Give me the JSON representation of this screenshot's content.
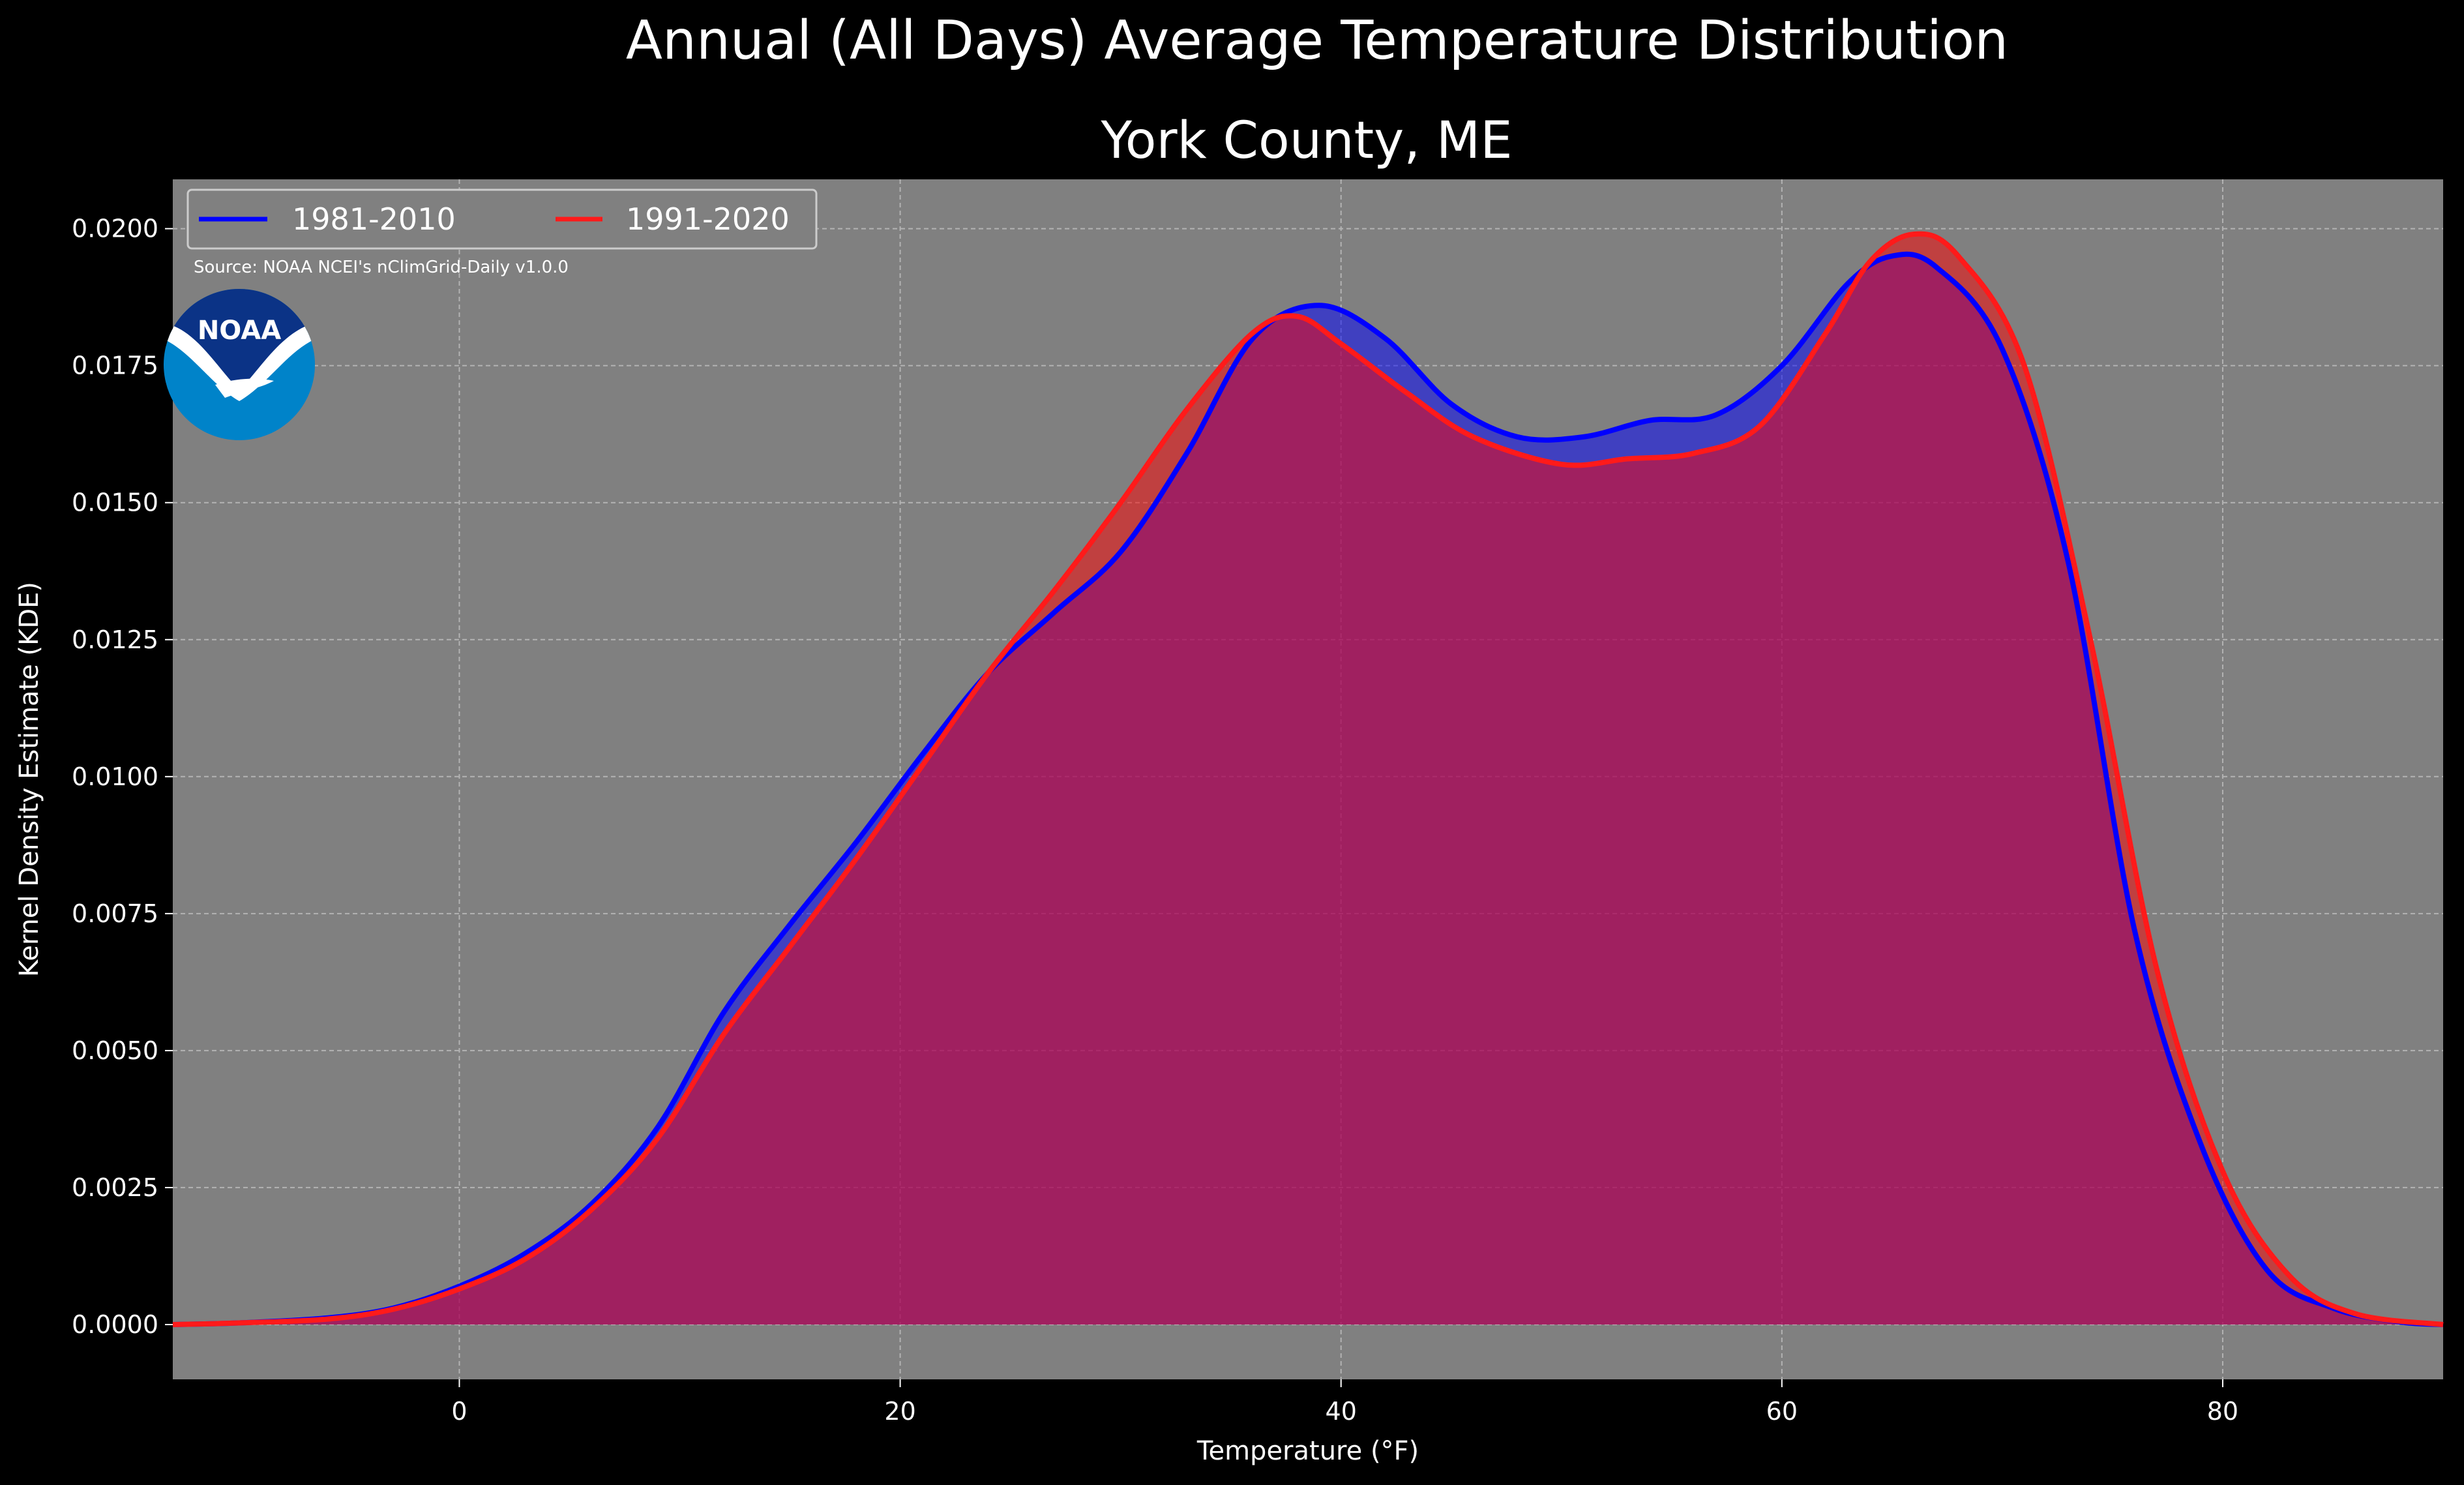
{
  "figure": {
    "suptitle": "Annual (All Days) Average Temperature Distribution",
    "source_note": "Source: NOAA NCEI's nClimGrid-Daily v1.0.0",
    "logo_text": "NOAA",
    "background": "#000000",
    "plot_background": "#808080"
  },
  "chart_data": {
    "type": "area",
    "title": "York County, ME",
    "xlabel": "Temperature (°F)",
    "ylabel": "Kernel Density Estimate (KDE)",
    "xlim": [
      -13,
      90
    ],
    "ylim": [
      -0.001,
      0.0209
    ],
    "xticks": [
      0,
      20,
      40,
      60,
      80
    ],
    "yticks": [
      0.0,
      0.0025,
      0.005,
      0.0075,
      0.01,
      0.0125,
      0.015,
      0.0175,
      0.02
    ],
    "xtick_labels": [
      "0",
      "20",
      "40",
      "60",
      "80"
    ],
    "ytick_labels": [
      "0.0000",
      "0.0025",
      "0.0050",
      "0.0075",
      "0.0100",
      "0.0125",
      "0.0150",
      "0.0175",
      "0.0200"
    ],
    "grid": true,
    "legend_position": "top-left",
    "series": [
      {
        "name": "1981-2010",
        "color": "#0000ff",
        "fill_color": "#0000ff",
        "points": [
          [
            -13,
            0.0
          ],
          [
            -10,
            3e-05
          ],
          [
            -6,
            0.00012
          ],
          [
            -3,
            0.0003
          ],
          [
            0,
            0.0007
          ],
          [
            3,
            0.0013
          ],
          [
            6,
            0.0022
          ],
          [
            9,
            0.0036
          ],
          [
            12,
            0.0057
          ],
          [
            15,
            0.0073
          ],
          [
            18,
            0.0088
          ],
          [
            21,
            0.0104
          ],
          [
            24,
            0.0119
          ],
          [
            27,
            0.013
          ],
          [
            30,
            0.0141
          ],
          [
            33,
            0.0159
          ],
          [
            36,
            0.018
          ],
          [
            39,
            0.0186
          ],
          [
            42,
            0.018
          ],
          [
            45,
            0.0168
          ],
          [
            48,
            0.0162
          ],
          [
            51,
            0.0162
          ],
          [
            54,
            0.0165
          ],
          [
            57,
            0.0166
          ],
          [
            60,
            0.0175
          ],
          [
            63,
            0.019
          ],
          [
            65,
            0.0195
          ],
          [
            67,
            0.0193
          ],
          [
            70,
            0.0178
          ],
          [
            73,
            0.0139
          ],
          [
            76,
            0.0072
          ],
          [
            79,
            0.0033
          ],
          [
            82,
            0.001
          ],
          [
            85,
            0.0003
          ],
          [
            88,
            5e-05
          ],
          [
            90,
            0.0
          ]
        ]
      },
      {
        "name": "1991-2020",
        "color": "#ff1a1a",
        "fill_color": "#ff0000",
        "points": [
          [
            -13,
            0.0
          ],
          [
            -10,
            3e-05
          ],
          [
            -6,
            0.0001
          ],
          [
            -3,
            0.00028
          ],
          [
            0,
            0.00065
          ],
          [
            3,
            0.0012
          ],
          [
            6,
            0.0021
          ],
          [
            9,
            0.0034
          ],
          [
            12,
            0.0053
          ],
          [
            15,
            0.0069
          ],
          [
            18,
            0.0085
          ],
          [
            21,
            0.0102
          ],
          [
            24,
            0.0119
          ],
          [
            27,
            0.0134
          ],
          [
            30,
            0.015
          ],
          [
            33,
            0.0167
          ],
          [
            36,
            0.0181
          ],
          [
            38,
            0.0184
          ],
          [
            40,
            0.0179
          ],
          [
            43,
            0.017
          ],
          [
            46,
            0.0162
          ],
          [
            50,
            0.0157
          ],
          [
            53,
            0.0158
          ],
          [
            56,
            0.0159
          ],
          [
            59,
            0.0164
          ],
          [
            62,
            0.0181
          ],
          [
            64,
            0.0194
          ],
          [
            66,
            0.0199
          ],
          [
            68,
            0.0195
          ],
          [
            71,
            0.0175
          ],
          [
            74,
            0.0125
          ],
          [
            77,
            0.0065
          ],
          [
            80,
            0.0028
          ],
          [
            83,
            0.0009
          ],
          [
            86,
            0.0002
          ],
          [
            90,
            0.0
          ]
        ]
      }
    ]
  }
}
